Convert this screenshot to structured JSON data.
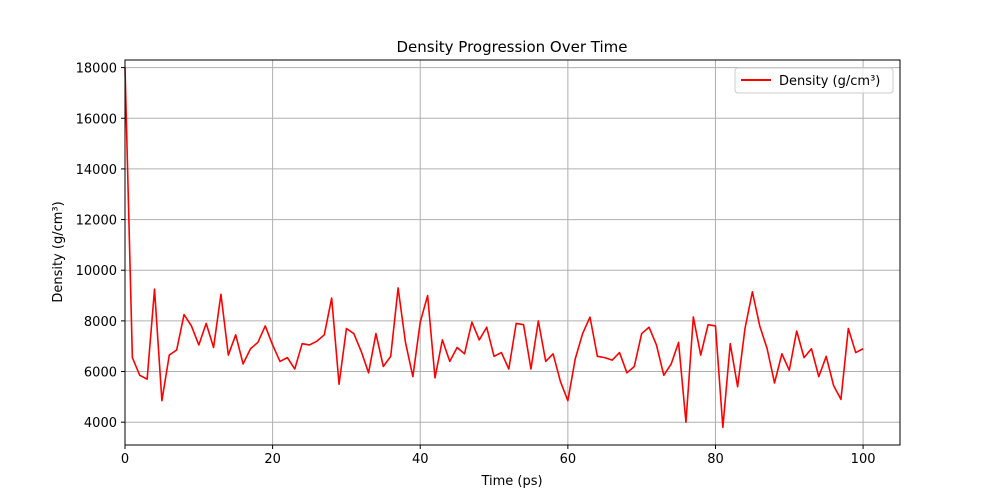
{
  "chart_data": {
    "type": "line",
    "title": "Density Progression Over Time",
    "xlabel": "Time (ps)",
    "ylabel": "Density (g/cm³)",
    "xlim": [
      0,
      105
    ],
    "ylim": [
      3100,
      18300
    ],
    "xticks": [
      0,
      20,
      40,
      60,
      80,
      100
    ],
    "yticks": [
      4000,
      6000,
      8000,
      10000,
      12000,
      14000,
      16000,
      18000
    ],
    "grid": true,
    "legend_position": "top-right",
    "colors": {
      "series": "#ff0000",
      "grid": "#b0b0b0"
    },
    "series": [
      {
        "name": "Density (g/cm³)",
        "x": [
          0,
          1,
          2,
          3,
          4,
          5,
          6,
          7,
          8,
          9,
          10,
          11,
          12,
          13,
          14,
          15,
          16,
          17,
          18,
          19,
          20,
          21,
          22,
          23,
          24,
          25,
          26,
          27,
          28,
          29,
          30,
          31,
          32,
          33,
          34,
          35,
          36,
          37,
          38,
          39,
          40,
          41,
          42,
          43,
          44,
          45,
          46,
          47,
          48,
          49,
          50,
          51,
          52,
          53,
          54,
          55,
          56,
          57,
          58,
          59,
          60,
          61,
          62,
          63,
          64,
          65,
          66,
          67,
          68,
          69,
          70,
          71,
          72,
          73,
          74,
          75,
          76,
          77,
          78,
          79,
          80,
          81,
          82,
          83,
          84,
          85,
          86,
          87,
          88,
          89,
          90,
          91,
          92,
          93,
          94,
          95,
          96,
          97,
          98,
          99,
          100
        ],
        "y": [
          18000,
          6550,
          5850,
          5700,
          9250,
          4850,
          6650,
          6850,
          8250,
          7800,
          7050,
          7900,
          6950,
          9050,
          6650,
          7450,
          6300,
          6900,
          7150,
          7800,
          7050,
          6400,
          6550,
          6100,
          7100,
          7050,
          7200,
          7450,
          8900,
          5500,
          7700,
          7500,
          6800,
          5950,
          7500,
          6200,
          6600,
          9300,
          7150,
          5800,
          7950,
          9000,
          5750,
          7250,
          6400,
          6950,
          6700,
          7950,
          7250,
          7750,
          6600,
          6750,
          6100,
          7900,
          7850,
          6100,
          8000,
          6400,
          6700,
          5600,
          4850,
          6500,
          7500,
          8150,
          6600,
          6550,
          6450,
          6750,
          5950,
          6200,
          7500,
          7750,
          7050,
          5850,
          6300,
          7150,
          4000,
          8150,
          6650,
          7850,
          7800,
          3800,
          7100,
          5400,
          7700,
          9150,
          7800,
          6900,
          5550,
          6700,
          6050,
          7600,
          6550,
          6900,
          5800,
          6600,
          5450,
          4900,
          7700,
          6750,
          6900
        ]
      }
    ]
  }
}
